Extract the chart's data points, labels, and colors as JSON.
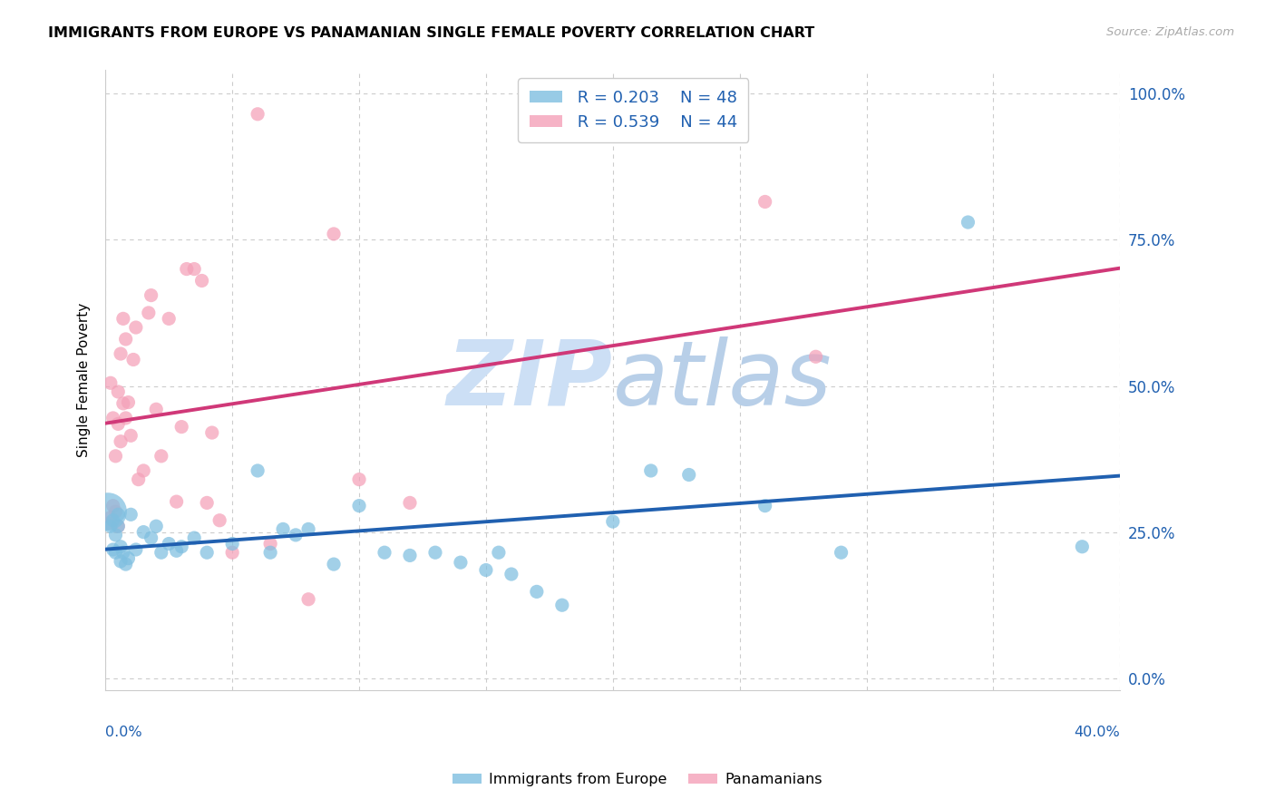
{
  "title": "IMMIGRANTS FROM EUROPE VS PANAMANIAN SINGLE FEMALE POVERTY CORRELATION CHART",
  "source": "Source: ZipAtlas.com",
  "ylabel": "Single Female Poverty",
  "right_ytick_labels": [
    "0.0%",
    "25.0%",
    "50.0%",
    "75.0%",
    "100.0%"
  ],
  "right_ytick_vals": [
    0.0,
    0.25,
    0.5,
    0.75,
    1.0
  ],
  "xmin": 0.0,
  "xmax": 0.4,
  "ymin": -0.02,
  "ymax": 1.04,
  "legend_r1": "R = 0.203",
  "legend_n1": "N = 48",
  "legend_r2": "R = 0.539",
  "legend_n2": "N = 44",
  "blue_color": "#7fbfe0",
  "pink_color": "#f4a0b8",
  "blue_line_color": "#2060b0",
  "pink_line_color": "#d03878",
  "watermark_zip": "ZIP",
  "watermark_atlas": "atlas",
  "watermark_color": "#ccdff5",
  "label_bottom_left": "0.0%",
  "label_bottom_right": "40.0%",
  "blue_points_x": [
    0.001,
    0.002,
    0.003,
    0.003,
    0.004,
    0.004,
    0.005,
    0.005,
    0.006,
    0.006,
    0.007,
    0.008,
    0.009,
    0.01,
    0.012,
    0.015,
    0.018,
    0.02,
    0.022,
    0.025,
    0.028,
    0.03,
    0.035,
    0.04,
    0.05,
    0.06,
    0.065,
    0.07,
    0.075,
    0.08,
    0.09,
    0.1,
    0.11,
    0.12,
    0.13,
    0.14,
    0.15,
    0.155,
    0.16,
    0.17,
    0.18,
    0.2,
    0.215,
    0.23,
    0.26,
    0.29,
    0.34,
    0.385
  ],
  "blue_points_y": [
    0.285,
    0.26,
    0.22,
    0.27,
    0.215,
    0.245,
    0.26,
    0.28,
    0.2,
    0.225,
    0.215,
    0.195,
    0.205,
    0.28,
    0.22,
    0.25,
    0.24,
    0.26,
    0.215,
    0.23,
    0.218,
    0.225,
    0.24,
    0.215,
    0.23,
    0.355,
    0.215,
    0.255,
    0.245,
    0.255,
    0.195,
    0.295,
    0.215,
    0.21,
    0.215,
    0.198,
    0.185,
    0.215,
    0.178,
    0.148,
    0.125,
    0.268,
    0.355,
    0.348,
    0.295,
    0.215,
    0.78,
    0.225
  ],
  "blue_point_sizes": [
    900,
    120,
    120,
    120,
    120,
    120,
    120,
    120,
    120,
    120,
    120,
    120,
    120,
    120,
    120,
    120,
    120,
    120,
    120,
    120,
    120,
    120,
    120,
    120,
    120,
    120,
    120,
    120,
    120,
    120,
    120,
    120,
    120,
    120,
    120,
    120,
    120,
    120,
    120,
    120,
    120,
    120,
    120,
    120,
    120,
    120,
    120,
    120
  ],
  "pink_points_x": [
    0.001,
    0.002,
    0.002,
    0.003,
    0.003,
    0.004,
    0.004,
    0.005,
    0.005,
    0.005,
    0.006,
    0.006,
    0.007,
    0.007,
    0.008,
    0.008,
    0.009,
    0.01,
    0.011,
    0.012,
    0.013,
    0.015,
    0.017,
    0.018,
    0.02,
    0.022,
    0.025,
    0.028,
    0.03,
    0.032,
    0.035,
    0.038,
    0.04,
    0.042,
    0.045,
    0.05,
    0.06,
    0.065,
    0.08,
    0.09,
    0.1,
    0.12,
    0.26,
    0.28
  ],
  "pink_points_y": [
    0.265,
    0.275,
    0.505,
    0.295,
    0.445,
    0.285,
    0.38,
    0.26,
    0.435,
    0.49,
    0.555,
    0.405,
    0.615,
    0.47,
    0.445,
    0.58,
    0.472,
    0.415,
    0.545,
    0.6,
    0.34,
    0.355,
    0.625,
    0.655,
    0.46,
    0.38,
    0.615,
    0.302,
    0.43,
    0.7,
    0.7,
    0.68,
    0.3,
    0.42,
    0.27,
    0.215,
    0.965,
    0.23,
    0.135,
    0.76,
    0.34,
    0.3,
    0.815,
    0.55
  ],
  "pink_point_sizes": [
    120,
    120,
    120,
    120,
    120,
    120,
    120,
    120,
    120,
    120,
    120,
    120,
    120,
    120,
    120,
    120,
    120,
    120,
    120,
    120,
    120,
    120,
    120,
    120,
    120,
    120,
    120,
    120,
    120,
    120,
    120,
    120,
    120,
    120,
    120,
    120,
    120,
    120,
    120,
    120,
    120,
    120,
    120,
    120
  ]
}
